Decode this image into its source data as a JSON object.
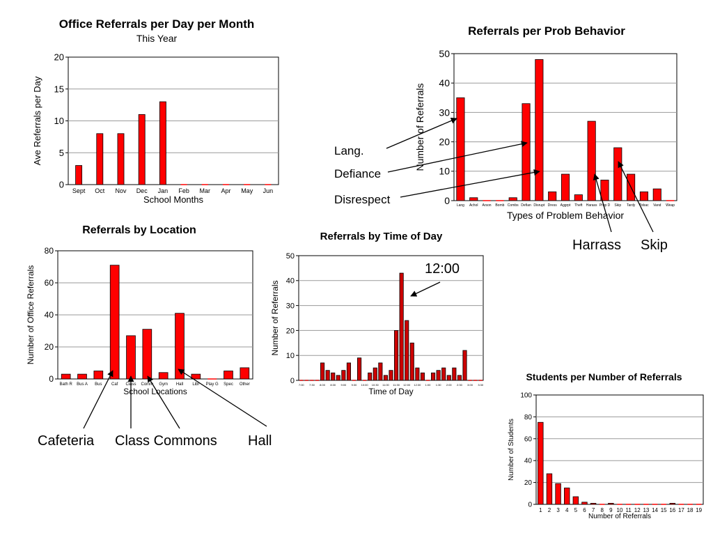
{
  "charts": {
    "month": {
      "type": "bar",
      "title": "Office Referrals per Day per Month",
      "subtitle": "This Year",
      "xlabel": "School Months",
      "ylabel": "Ave Referrals per Day",
      "categories": [
        "Sept",
        "Oct",
        "Nov",
        "Dec",
        "Jan",
        "Feb",
        "Mar",
        "Apr",
        "May",
        "Jun"
      ],
      "values": [
        3,
        8,
        8,
        11,
        13,
        0,
        0,
        0,
        0,
        0
      ],
      "ylim": [
        0,
        20
      ],
      "yticks": [
        0,
        5,
        10,
        15,
        20
      ],
      "grid": true,
      "bar_color": "#ff0000"
    },
    "behavior": {
      "type": "bar",
      "title": "Referrals per Prob Behavior",
      "xlabel": "Types of Problem Behavior",
      "ylabel": "Number of Referrals",
      "categories": [
        "Lang",
        "Achol",
        "Arson",
        "Bomb",
        "Combs",
        "Defian",
        "Disrupt",
        "Dress",
        "Aggrpt",
        "Theft",
        "Harass",
        "Prop D",
        "Skip",
        "Tardy",
        "Tobac",
        "Vand",
        "Weap"
      ],
      "values": [
        35,
        1,
        0,
        0,
        1,
        33,
        48,
        3,
        9,
        2,
        27,
        7,
        18,
        9,
        3,
        4,
        0
      ],
      "ylim": [
        0,
        50
      ],
      "yticks": [
        0,
        10,
        20,
        30,
        40,
        50
      ],
      "grid": true,
      "bar_color": "#ff0000"
    },
    "location": {
      "type": "bar",
      "title": "Referrals by Location",
      "xlabel": "School Locations",
      "ylabel": "Number of Office Referrals",
      "categories": [
        "Bath R",
        "Bus A",
        "Bus",
        "Caf",
        "Class",
        "Comm",
        "Gym",
        "Hall",
        "Libr",
        "Play G",
        "Spec",
        "Other"
      ],
      "values": [
        3,
        3,
        5,
        71,
        27,
        31,
        4,
        41,
        3,
        0,
        5,
        7
      ],
      "ylim": [
        0,
        80
      ],
      "yticks": [
        0,
        20,
        40,
        60,
        80
      ],
      "grid": true,
      "bar_color": "#ff0000"
    },
    "time": {
      "type": "bar",
      "title": "Referrals by Time of Day",
      "xlabel": "Time of Day",
      "ylabel": "Number of Referrals",
      "categories": [
        "7:00",
        "7:15",
        "7:30",
        "7:45",
        "8:00",
        "8:15",
        "8:30",
        "8:45",
        "9:00",
        "9:15",
        "9:30",
        "9:45",
        "10:00",
        "10:15",
        "10:30",
        "10:45",
        "11:00",
        "11:15",
        "11:30",
        "11:45",
        "12:00",
        "12:15",
        "12:30",
        "12:45",
        "1:00",
        "1:15",
        "1:30",
        "1:45",
        "2:00",
        "2:15",
        "2:30",
        "2:45",
        "3:00",
        "3:15",
        "3:30"
      ],
      "tick_labels": [
        "7:00",
        "7:30",
        "8:00",
        "8:30",
        "9:00",
        "9:30",
        "10:00",
        "10:30",
        "11:00",
        "11:30",
        "12:00",
        "12:30",
        "1:00",
        "1:30",
        "2:00",
        "2:30",
        "3:00",
        "3:30"
      ],
      "values": [
        0,
        0,
        0,
        0,
        7,
        4,
        3,
        2,
        4,
        7,
        0,
        9,
        0,
        3,
        5,
        7,
        2,
        4,
        20,
        43,
        24,
        15,
        5,
        3,
        0,
        3,
        4,
        5,
        2,
        5,
        2,
        12,
        0,
        0,
        0
      ],
      "ylim": [
        0,
        50
      ],
      "yticks": [
        0,
        10,
        20,
        30,
        40,
        50
      ],
      "grid": true,
      "bar_color": "#cc0000"
    },
    "students": {
      "type": "bar",
      "title": "Students per Number of Referrals",
      "xlabel": "Number of Referrals",
      "ylabel": "Number of Students",
      "categories": [
        "1",
        "2",
        "3",
        "4",
        "5",
        "6",
        "7",
        "8",
        "9",
        "10",
        "11",
        "12",
        "13",
        "14",
        "15",
        "16",
        "17",
        "18",
        "19"
      ],
      "values": [
        75,
        28,
        19,
        15,
        7,
        2,
        1,
        0,
        1,
        0,
        0,
        0,
        0,
        0,
        0,
        1,
        0,
        0,
        0
      ],
      "ylim": [
        0,
        100
      ],
      "yticks": [
        0,
        20,
        40,
        60,
        80,
        100
      ],
      "grid": true,
      "bar_color": "#ff0000"
    }
  },
  "annotations": {
    "lang": "Lang.",
    "defiance": "Defiance",
    "disrespect": "Disrespect",
    "harrass": "Harrass",
    "skip": "Skip",
    "noon": "12:00",
    "cafeteria": "Cafeteria",
    "class_commons": "Class Commons",
    "hall": "Hall"
  }
}
